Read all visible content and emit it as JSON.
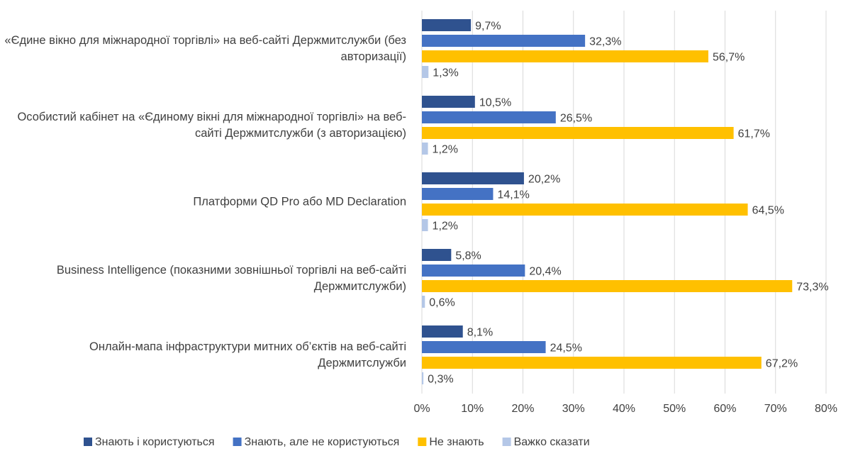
{
  "chart_data": {
    "type": "bar",
    "orientation": "horizontal",
    "categories": [
      "«Єдине вікно для міжнародної торгівлі» на веб-сайті Держмитслужби (без авторизації)",
      "Особистий кабінет на «Єдиному вікні для міжнародної торгівлі» на веб-сайті Держмитслужби (з авторизацією)",
      "Платформи QD Pro або MD Declaration",
      "Business Intelligence (показними зовнішньої торгівлі на веб-сайті Держмитслужби)",
      "Онлайн-мапа інфраструктури митних об’єктів на веб-сайті Держмитслужби"
    ],
    "series": [
      {
        "name": "Знають і користуються",
        "color": "#2f528f",
        "values": [
          9.7,
          10.5,
          20.2,
          5.8,
          8.1
        ],
        "value_labels": [
          "9,7%",
          "10,5%",
          "20,2%",
          "5,8%",
          "8,1%"
        ]
      },
      {
        "name": "Знають, але не користуються",
        "color": "#4472c4",
        "values": [
          32.3,
          26.5,
          14.1,
          20.4,
          24.5
        ],
        "value_labels": [
          "32,3%",
          "26,5%",
          "14,1%",
          "20,4%",
          "24,5%"
        ]
      },
      {
        "name": "Не знають",
        "color": "#ffc000",
        "values": [
          56.7,
          61.7,
          64.5,
          73.3,
          67.2
        ],
        "value_labels": [
          "56,7%",
          "61,7%",
          "64,5%",
          "73,3%",
          "67,2%"
        ]
      },
      {
        "name": "Важко сказати",
        "color": "#b4c7e7",
        "values": [
          1.3,
          1.2,
          1.2,
          0.6,
          0.3
        ],
        "value_labels": [
          "1,3%",
          "1,2%",
          "1,2%",
          "0,6%",
          "0,3%"
        ]
      }
    ],
    "xlim": [
      0,
      80
    ],
    "xticks": [
      {
        "value": 0,
        "label": "0%"
      },
      {
        "value": 10,
        "label": "10%"
      },
      {
        "value": 20,
        "label": "20%"
      },
      {
        "value": 30,
        "label": "30%"
      },
      {
        "value": 40,
        "label": "40%"
      },
      {
        "value": 50,
        "label": "50%"
      },
      {
        "value": 60,
        "label": "60%"
      },
      {
        "value": 70,
        "label": "70%"
      },
      {
        "value": 80,
        "label": "80%"
      }
    ],
    "grid": true,
    "legend": "bottom"
  }
}
